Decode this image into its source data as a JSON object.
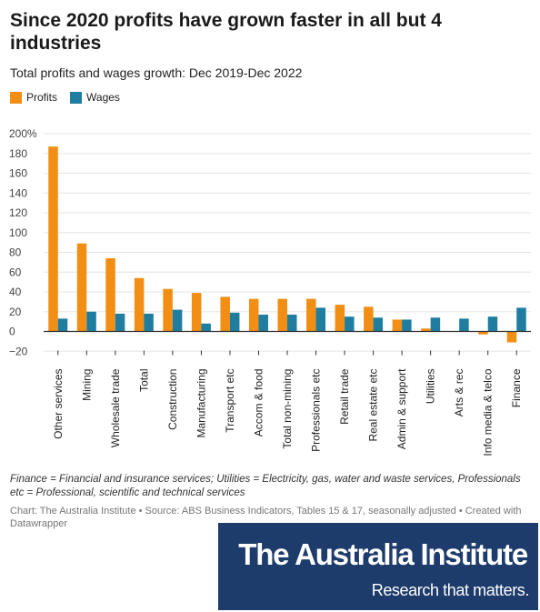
{
  "title": "Since 2020 profits have grown faster in all but 4 industries",
  "subtitle": "Total profits and wages growth: Dec 2019-Dec 2022",
  "colors": {
    "profits": "#f28e13",
    "wages": "#1f7ea0",
    "axis": "#333333",
    "grid": "#e6e6e6"
  },
  "notes": "Finance = Financial and insurance services; Utilities = Electricity, gas, water and waste services, Professionals etc = Professional, scientific and technical services",
  "source": "Chart: The Australia Institute • Source: ABS Business Indicators, Tables 15 & 17, seasonally adjusted • Created with Datawrapper",
  "logo": {
    "name": "The Australia Institute",
    "tagline": "Research that matters."
  },
  "chart_data": {
    "type": "bar",
    "categories": [
      "Other services",
      "Mining",
      "Wholesale trade",
      "Total",
      "Construction",
      "Manufacturing",
      "Transport etc",
      "Accom & food",
      "Total non-mining",
      "Professionals etc",
      "Retail trade",
      "Real estate etc",
      "Admin & support",
      "Utilities",
      "Arts & rec",
      "Info media & telco",
      "Finance"
    ],
    "series": [
      {
        "name": "Profits",
        "values": [
          187,
          89,
          74,
          54,
          43,
          39,
          35,
          33,
          33,
          33,
          27,
          25,
          12,
          3,
          0,
          -3,
          -11
        ]
      },
      {
        "name": "Wages",
        "values": [
          13,
          20,
          18,
          18,
          22,
          8,
          19,
          17,
          17,
          24,
          15,
          14,
          12,
          14,
          13,
          15,
          24
        ]
      }
    ],
    "y_ticks": [
      "200%",
      "180",
      "160",
      "140",
      "120",
      "100",
      "80",
      "60",
      "40",
      "20",
      "0",
      "−20"
    ],
    "ylim": [
      -20,
      200
    ],
    "grid": true,
    "legend_position": "top-left"
  }
}
